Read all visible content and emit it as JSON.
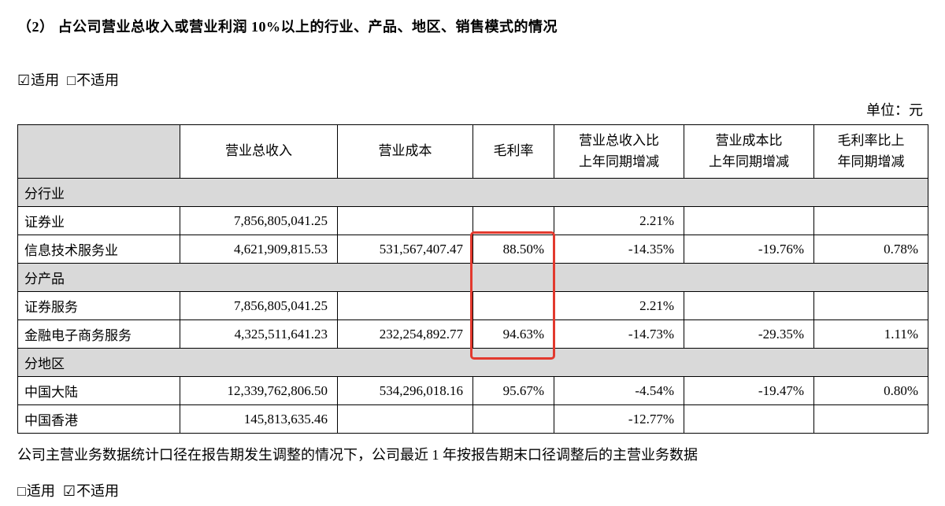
{
  "page": {
    "title": "（2）  占公司营业总收入或营业利润 10%以上的行业、产品、地区、销售模式的情况",
    "unit_label": "单位：元",
    "footer_note": "公司主营业务数据统计口径在报告期发生调整的情况下，公司最近 1 年按报告期末口径调整后的主营业务数据"
  },
  "applicability_top": {
    "applicable": {
      "symbol": "☑",
      "label": "适用"
    },
    "not_applicable": {
      "symbol": "□",
      "label": "不适用"
    }
  },
  "applicability_bottom": {
    "applicable": {
      "symbol": "□",
      "label": "适用"
    },
    "not_applicable": {
      "symbol": "☑",
      "label": "不适用"
    }
  },
  "annotation": {
    "color": "#e2392e",
    "highlighted_column": "毛利率"
  },
  "table": {
    "headers": [
      "",
      "营业总收入",
      "营业成本",
      "毛利率",
      "营业总收入比\n上年同期增减",
      "营业成本比\n上年同期增减",
      "毛利率比上\n年同期增减"
    ],
    "rows": [
      {
        "type": "section",
        "label": "分行业"
      },
      {
        "type": "data",
        "cells": [
          "证券业",
          "7,856,805,041.25",
          "",
          "",
          "2.21%",
          "",
          ""
        ]
      },
      {
        "type": "data",
        "cells": [
          "信息技术服务业",
          "4,621,909,815.53",
          "531,567,407.47",
          "88.50%",
          "-14.35%",
          "-19.76%",
          "0.78%"
        ]
      },
      {
        "type": "section",
        "label": "分产品"
      },
      {
        "type": "data",
        "cells": [
          "证券服务",
          "7,856,805,041.25",
          "",
          "",
          "2.21%",
          "",
          ""
        ]
      },
      {
        "type": "data",
        "cells": [
          "金融电子商务服务",
          "4,325,511,641.23",
          "232,254,892.77",
          "94.63%",
          "-14.73%",
          "-29.35%",
          "1.11%"
        ]
      },
      {
        "type": "section",
        "label": "分地区"
      },
      {
        "type": "data",
        "cells": [
          "中国大陆",
          "12,339,762,806.50",
          "534,296,018.16",
          "95.67%",
          "-4.54%",
          "-19.47%",
          "0.80%"
        ]
      },
      {
        "type": "data",
        "cells": [
          "中国香港",
          "145,813,635.46",
          "",
          "",
          "-12.77%",
          "",
          ""
        ]
      }
    ]
  }
}
